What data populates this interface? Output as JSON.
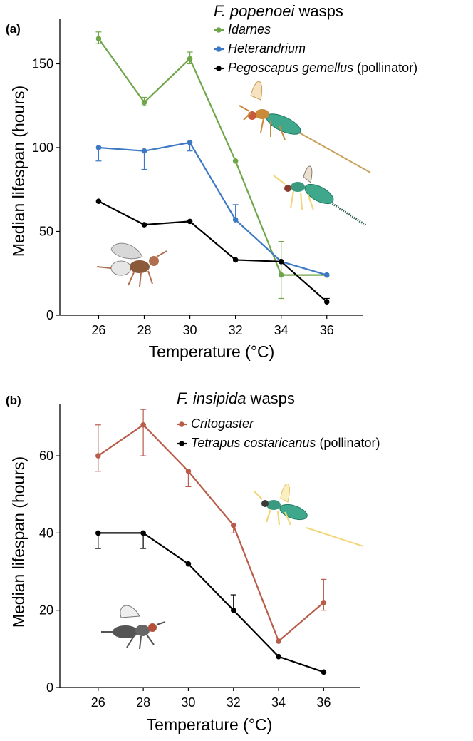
{
  "chart_data": [
    {
      "type": "line",
      "panel_label": "(a)",
      "legend_title": {
        "species": "F. popenoei",
        "suffix": " wasps"
      },
      "xlabel": "Temperature (°C)",
      "ylabel": "Median lifespan (hours)",
      "x": [
        26,
        28,
        30,
        32,
        34,
        36
      ],
      "xlim": [
        24.3,
        37.6
      ],
      "ylim": [
        0,
        177
      ],
      "yticks": [
        0,
        50,
        100,
        150
      ],
      "series": [
        {
          "name": "Idarnes",
          "suffix": "",
          "color": "#70a64a",
          "values": [
            165,
            127,
            153,
            92,
            24,
            24
          ],
          "err_low": [
            3,
            2,
            3,
            0,
            14,
            0
          ],
          "err_high": [
            4,
            3,
            4,
            0,
            20,
            0
          ]
        },
        {
          "name": "Heterandrium",
          "suffix": "",
          "color": "#3d78c4",
          "values": [
            100,
            98,
            103,
            57,
            32,
            24
          ],
          "err_low": [
            8,
            11,
            5,
            0,
            0,
            0
          ],
          "err_high": [
            0,
            0,
            0,
            9,
            0,
            0
          ]
        },
        {
          "name": "Pegoscapus gemellus",
          "suffix": " (pollinator)",
          "color": "#000000",
          "values": [
            68,
            54,
            56,
            33,
            32,
            8
          ],
          "err_low": [
            0,
            0,
            0,
            0,
            0,
            0
          ],
          "err_high": [
            0,
            0,
            0,
            0,
            0,
            2
          ]
        }
      ],
      "illustrations": [
        "Idarnes wasp illustration",
        "Heterandrium wasp illustration",
        "Pegoscapus pollinator wasp illustration"
      ]
    },
    {
      "type": "line",
      "panel_label": "(b)",
      "legend_title": {
        "species": "F. insipida",
        "suffix": " wasps"
      },
      "xlabel": "Temperature (°C)",
      "ylabel": "Median lifespan (hours)",
      "x": [
        26,
        28,
        30,
        32,
        34,
        36
      ],
      "xlim": [
        24.3,
        37.6
      ],
      "ylim": [
        0,
        73.5
      ],
      "yticks": [
        0,
        20,
        40,
        60
      ],
      "series": [
        {
          "name": "Critogaster",
          "suffix": "",
          "color": "#b95c4a",
          "values": [
            60,
            68,
            56,
            42,
            12,
            22
          ],
          "err_low": [
            4,
            8,
            4,
            2,
            0,
            2
          ],
          "err_high": [
            8,
            4,
            0,
            0,
            0,
            6
          ]
        },
        {
          "name": "Tetrapus costaricanus",
          "suffix": " (pollinator)",
          "color": "#000000",
          "values": [
            40,
            40,
            32,
            20,
            8,
            4
          ],
          "err_low": [
            4,
            4,
            0,
            0,
            0,
            0
          ],
          "err_high": [
            0,
            0,
            0,
            4,
            0,
            0
          ]
        }
      ],
      "illustrations": [
        "Critogaster wasp illustration",
        "Tetrapus pollinator wasp illustration"
      ]
    }
  ]
}
